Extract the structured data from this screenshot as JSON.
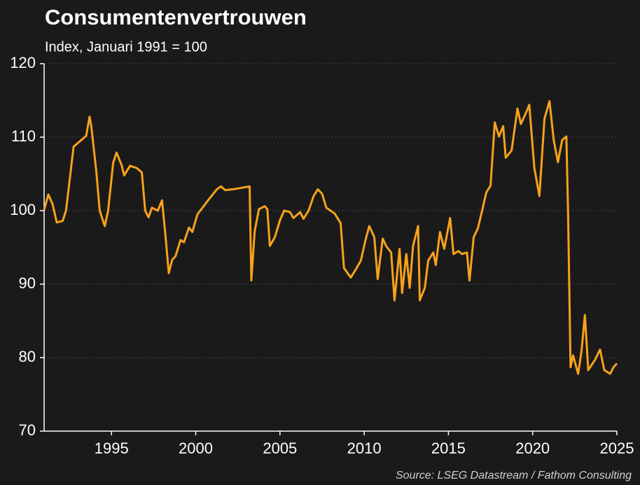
{
  "chart_data": {
    "type": "line",
    "title": "Consumentenvertrouwen",
    "subtitle": "Index, Januari 1991 = 100",
    "source": "Source: LSEG Datastream / Fathom Consulting",
    "xlim": [
      1991,
      2025
    ],
    "xticks": [
      1995,
      2000,
      2005,
      2010,
      2015,
      2020,
      2025
    ],
    "ylim": [
      70,
      120
    ],
    "yticks": [
      70,
      80,
      90,
      100,
      110,
      120
    ],
    "grid": true,
    "series": [
      {
        "color": "#f7a21b",
        "x": [
          1991.0,
          1991.25,
          1991.5,
          1991.75,
          1992.1,
          1992.3,
          1992.6,
          1992.75,
          1993.2,
          1993.5,
          1993.7,
          1993.8,
          1994.1,
          1994.3,
          1994.6,
          1994.8,
          1995.1,
          1995.3,
          1995.6,
          1995.75,
          1996.1,
          1996.5,
          1996.8,
          1997.0,
          1997.2,
          1997.4,
          1997.75,
          1998.0,
          1998.2,
          1998.4,
          1998.6,
          1998.8,
          1999.1,
          1999.3,
          1999.6,
          1999.8,
          2000.1,
          2000.4,
          2000.8,
          2001.25,
          2001.5,
          2001.75,
          2002.2,
          2002.7,
          2003.2,
          2003.3,
          2003.5,
          2003.75,
          2004.1,
          2004.25,
          2004.4,
          2004.7,
          2005.0,
          2005.25,
          2005.6,
          2005.8,
          2006.2,
          2006.4,
          2006.7,
          2007.0,
          2007.25,
          2007.5,
          2007.75,
          2008.0,
          2008.25,
          2008.6,
          2008.8,
          2009.2,
          2009.5,
          2009.8,
          2010.1,
          2010.3,
          2010.6,
          2010.8,
          2011.1,
          2011.3,
          2011.6,
          2011.8,
          2012.1,
          2012.25,
          2012.5,
          2012.7,
          2012.9,
          2013.2,
          2013.3,
          2013.6,
          2013.8,
          2014.1,
          2014.25,
          2014.5,
          2014.75,
          2015.1,
          2015.3,
          2015.6,
          2015.8,
          2016.1,
          2016.25,
          2016.5,
          2016.75,
          2017.0,
          2017.25,
          2017.5,
          2017.75,
          2018.0,
          2018.25,
          2018.4,
          2018.75,
          2019.1,
          2019.3,
          2019.6,
          2019.8,
          2020.1,
          2020.4,
          2020.7,
          2021.0,
          2021.25,
          2021.5,
          2021.75,
          2022.0,
          2022.1,
          2022.25,
          2022.4,
          2022.7,
          2022.9,
          2023.1,
          2023.3,
          2023.7,
          2024.0,
          2024.25,
          2024.6,
          2024.8,
          2025.0
        ],
        "values": [
          100.1,
          102.2,
          100.9,
          98.4,
          98.6,
          100,
          105.8,
          108.7,
          109.6,
          110.2,
          112.8,
          111.5,
          105.3,
          100,
          97.9,
          100,
          106.5,
          107.9,
          106.2,
          104.8,
          106.1,
          105.8,
          105.2,
          100,
          99.1,
          100.4,
          100,
          101.4,
          96.7,
          91.5,
          93.3,
          93.8,
          96,
          95.7,
          97.7,
          97.1,
          99.5,
          100.4,
          101.6,
          102.9,
          103.3,
          102.8,
          102.9,
          103.1,
          103.3,
          90.5,
          97.2,
          100.2,
          100.6,
          100.2,
          95.2,
          96.4,
          98.7,
          100,
          99.8,
          99,
          99.8,
          98.9,
          100,
          102,
          102.9,
          102.3,
          100.4,
          100,
          99.6,
          98.3,
          92.2,
          90.9,
          92,
          93.2,
          96.2,
          97.9,
          96.4,
          90.7,
          96.2,
          95.2,
          94.3,
          87.8,
          94.8,
          88.8,
          94.1,
          89.5,
          95.2,
          97.9,
          87.8,
          89.5,
          93.2,
          94.3,
          92.6,
          97.1,
          94.8,
          99,
          94.1,
          94.5,
          94.1,
          94.3,
          90.5,
          96.4,
          97.6,
          100,
          102.5,
          103.4,
          112,
          110.1,
          111.5,
          107.2,
          108.2,
          113.9,
          111.8,
          113.3,
          114.4,
          105.8,
          102,
          112.5,
          114.9,
          109.6,
          106.6,
          109.6,
          110.1,
          100,
          78.7,
          80.3,
          77.8,
          80.9,
          85.8,
          78.3,
          79.7,
          81.1,
          78.3,
          77.8,
          78.7,
          79.2
        ]
      }
    ]
  }
}
